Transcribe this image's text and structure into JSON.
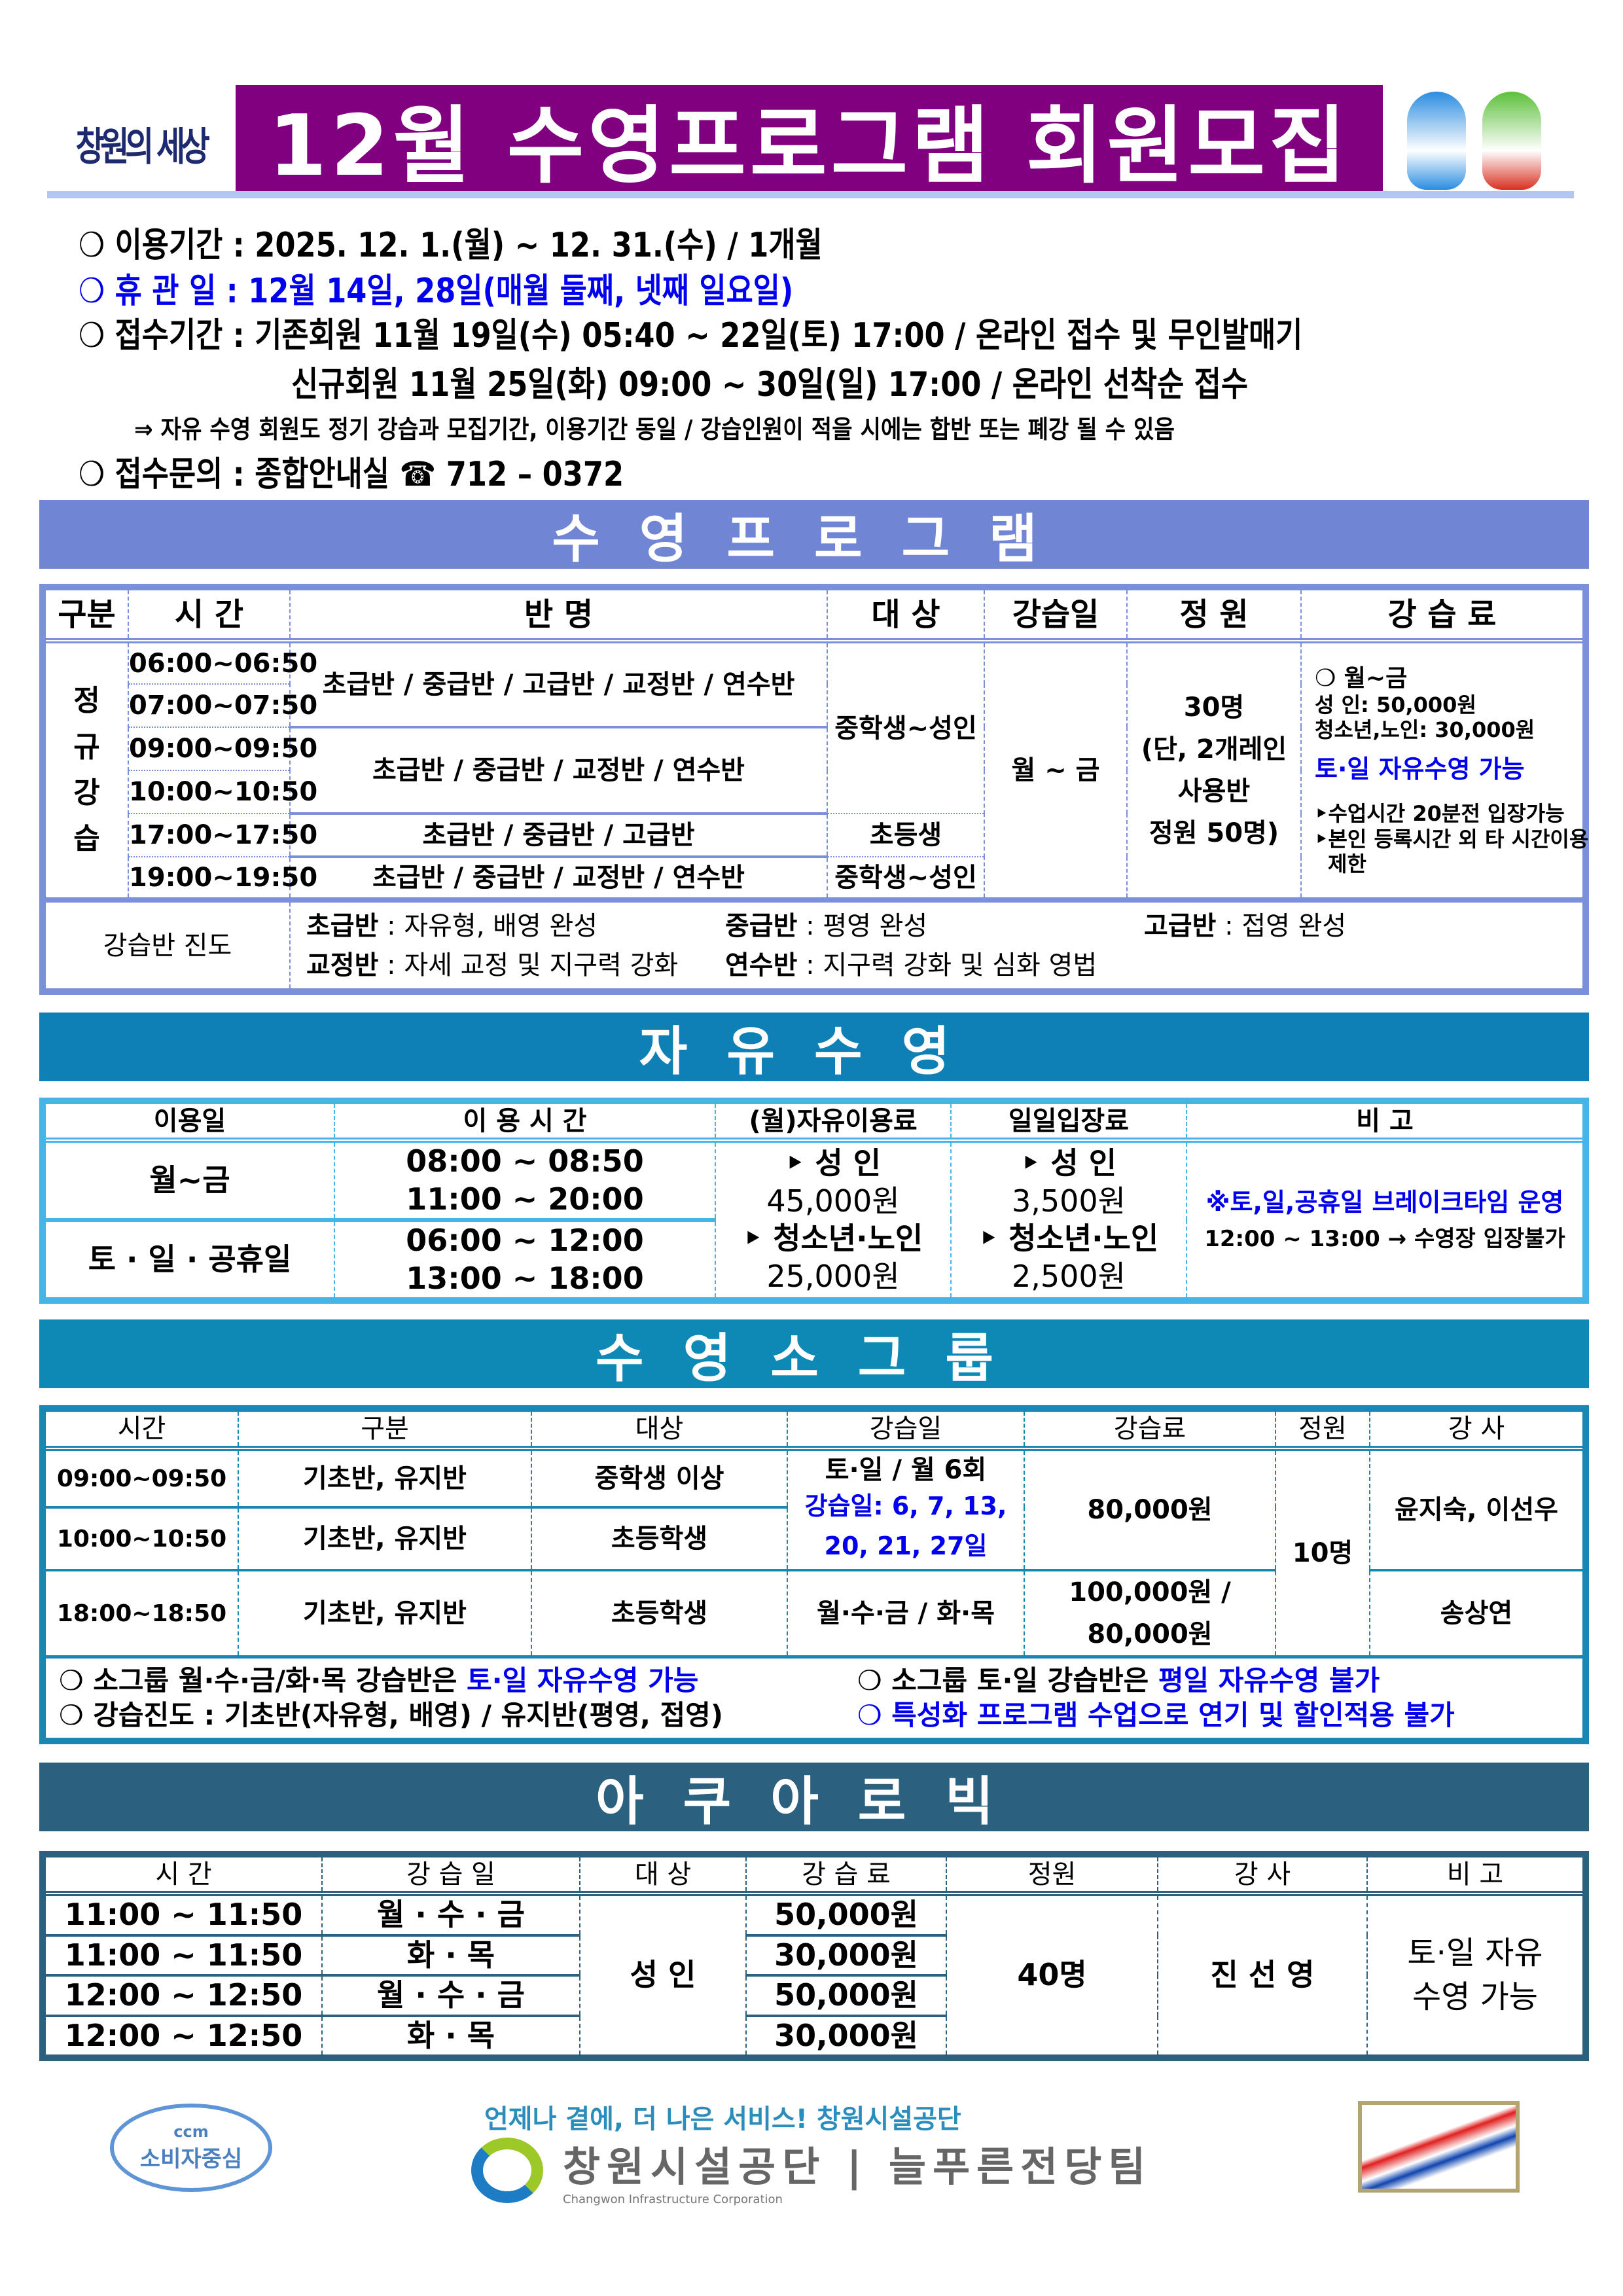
{
  "header": {
    "logo_text": "창원의 세상",
    "title": "12월 수영프로그램 회원모집",
    "brand_color": "#800080"
  },
  "info": {
    "line1": "❍ 이용기간 : 2025. 12. 1.(월) ~ 12. 31.(수) / 1개월",
    "line2": "❍ 휴 관 일 : 12월 14일, 28일(매월 둘째, 넷째 일요일)",
    "line3": "❍ 접수기간 : 기존회원 11월 19일(수) 05:40 ~ 22일(토) 17:00 / 온라인 접수 및 무인발매기",
    "line4": "신규회원 11월 25일(화) 09:00 ~ 30일(일) 17:00 / 온라인 선착순 접수",
    "note": "⇒ 자유 수영 회원도 정기 강습과 모집기간, 이용기간 동일 / 강습인원이 적을 시에는 합반 또는 폐강 될 수 있음",
    "line5": "❍ 접수문의 : 종합안내실 ☎ 712 – 0372"
  },
  "swim_program": {
    "title": "수영프로그램",
    "color": "#7086d4",
    "headers": [
      "구분",
      "시 간",
      "반 명",
      "대 상",
      "강습일",
      "정 원",
      "강 습 료"
    ],
    "category": [
      "정",
      "규",
      "강",
      "습"
    ],
    "times": [
      "06:00~06:50",
      "07:00~07:50",
      "09:00~09:50",
      "10:00~10:50",
      "17:00~17:50",
      "19:00~19:50"
    ],
    "classes": [
      "초급반 / 중급반 / 고급반 / 교정반 / 연수반",
      "초급반 / 중급반 / 교정반 / 연수반",
      "초급반 / 중급반 / 고급반",
      "초급반 / 중급반 / 교정반 / 연수반"
    ],
    "targets": [
      "중학생~성인",
      "초등생",
      "중학생~성인"
    ],
    "days": "월 ~ 금",
    "capacity": [
      "30명",
      "(단, 2개레인",
      "사용반",
      "정원 50명)"
    ],
    "fee": {
      "l1": "❍ 월~금",
      "l2": "성      인: 50,000원",
      "l3": "청소년,노인: 30,000원",
      "l4": "토·일 자유수영 가능",
      "l5": "‣수업시간 20분전 입장가능",
      "l6": "‣본인 등록시간 외 타 시간이용",
      "l7": "제한"
    },
    "progress_label": "강습반 진도",
    "progress": [
      {
        "k": "초급반",
        "v": " : 자유형, 배영 완성"
      },
      {
        "k": "중급반",
        "v": " : 평영 완성"
      },
      {
        "k": "고급반",
        "v": " : 접영 완성"
      },
      {
        "k": "교정반",
        "v": " : 자세 교정 및 지구력 강화"
      },
      {
        "k": "연수반",
        "v": " : 지구력 강화 및 심화 영법"
      }
    ]
  },
  "free_swim": {
    "title": "자유수영",
    "color": "#0f80b6",
    "headers": [
      "이용일",
      "이 용 시 간",
      "(월)자유이용료",
      "일일입장료",
      "비 고"
    ],
    "days": [
      "월~금",
      "토 · 일 · 공휴일"
    ],
    "times": [
      [
        "08:00 ~ 08:50",
        "11:00 ~ 20:00"
      ],
      [
        "06:00 ~ 12:00",
        "13:00 ~ 18:00"
      ]
    ],
    "monthly": [
      {
        "k": "‣ 성    인",
        "v": "45,000원"
      },
      {
        "k": "‣ 청소년·노인",
        "v": "25,000원"
      }
    ],
    "daily": [
      {
        "k": "‣ 성    인",
        "v": "3,500원"
      },
      {
        "k": "‣ 청소년·노인",
        "v": "2,500원"
      }
    ],
    "note1": "※토,일,공휴일 브레이크타임 운영",
    "note2": "12:00 ~ 13:00 → 수영장 입장불가"
  },
  "small_group": {
    "title": "수영소그룹",
    "color": "#0e88b5",
    "headers": [
      "시간",
      "구분",
      "대상",
      "강습일",
      "강습료",
      "정원",
      "강 사"
    ],
    "rows": [
      {
        "time": "09:00~09:50",
        "type": "기초반, 유지반",
        "target": "중학생 이상"
      },
      {
        "time": "10:00~10:50",
        "type": "기초반, 유지반",
        "target": "초등학생"
      },
      {
        "time": "18:00~18:50",
        "type": "기초반, 유지반",
        "target": "초등학생"
      }
    ],
    "days1": "토·일 / 월 6회",
    "days1_note": "강습일: 6, 7, 13, 20, 21, 27일",
    "days2": "월·수·금 / 화·목",
    "fee1": "80,000원",
    "fee2a": "100,000원 /",
    "fee2b": "80,000원",
    "capacity": "10명",
    "coach1": "윤지숙, 이선우",
    "coach2": "송상연",
    "notes": [
      {
        "a": "❍ 소그룹 월·수·금/화·목 강습반은 ",
        "b": "토·일 자유수영 가능"
      },
      {
        "a": "❍ 소그룹 토·일 강습반은 ",
        "b": "평일 자유수영 불가"
      },
      {
        "a": "❍ 강습진도 : 기초반(자유형, 배영) / 유지반(평영, 접영)",
        "b": ""
      },
      {
        "a": "",
        "b": "❍ 특성화 프로그램 수업으로 연기 및 할인적용 불가"
      }
    ]
  },
  "aquarobic": {
    "title": "아쿠아로빅",
    "color": "#2b617f",
    "headers": [
      "시 간",
      "강 습 일",
      "대 상",
      "강 습 료",
      "정원",
      "강 사",
      "비 고"
    ],
    "rows": [
      {
        "time": "11:00 ~ 11:50",
        "days": "월 · 수 · 금",
        "fee": "50,000원"
      },
      {
        "time": "11:00 ~ 11:50",
        "days": "화  ·  목",
        "fee": "30,000원"
      },
      {
        "time": "12:00 ~ 12:50",
        "days": "월 · 수 · 금",
        "fee": "50,000원"
      },
      {
        "time": "12:00 ~ 12:50",
        "days": "화  ·  목",
        "fee": "30,000원"
      }
    ],
    "target": "성 인",
    "capacity": "40명",
    "coach": "진 선 영",
    "note1": "토·일 자유",
    "note2": "수영 가능"
  },
  "footer": {
    "slogan": "언제나 곁에, 더 나은 서비스! 창원시설공단",
    "ccm_top": "ccm",
    "ccm_text": "소비자중심",
    "org_name": "창원시설공단 | 늘푸른전당팀",
    "org_en": "Changwon Infrastructure Corporation"
  }
}
